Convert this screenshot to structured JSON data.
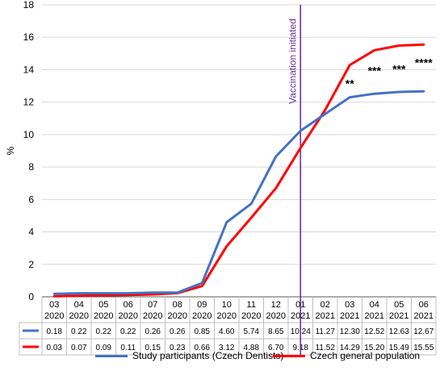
{
  "chart_data": {
    "type": "line",
    "ylabel": "%",
    "xlabel": "",
    "ylim": [
      0,
      18
    ],
    "yticks": [
      "0",
      "2",
      "4",
      "6",
      "8",
      "10",
      "12",
      "14",
      "16",
      "18"
    ],
    "grid": "horizontal",
    "categories": [
      [
        "03",
        "2020"
      ],
      [
        "04",
        "2020"
      ],
      [
        "05",
        "2020"
      ],
      [
        "06",
        "2020"
      ],
      [
        "07",
        "2020"
      ],
      [
        "08",
        "2020"
      ],
      [
        "09",
        "2020"
      ],
      [
        "10",
        "2020"
      ],
      [
        "11",
        "2020"
      ],
      [
        "12",
        "2020"
      ],
      [
        "01",
        "2021"
      ],
      [
        "02",
        "2021"
      ],
      [
        "03",
        "2021"
      ],
      [
        "04",
        "2021"
      ],
      [
        "05",
        "2021"
      ],
      [
        "06",
        "2021"
      ]
    ],
    "series": [
      {
        "name": "Study participants (Czech Dentists)",
        "color": "#4472C4",
        "values": [
          0.18,
          0.22,
          0.22,
          0.22,
          0.26,
          0.26,
          0.85,
          4.6,
          5.74,
          8.65,
          10.24,
          11.27,
          12.3,
          12.52,
          12.63,
          12.67
        ],
        "labels": [
          "0.18",
          "0.22",
          "0.22",
          "0.22",
          "0.26",
          "0.26",
          "0.85",
          "4.60",
          "5.74",
          "8.65",
          "10.24",
          "11.27",
          "12.30",
          "12.52",
          "12.63",
          "12.67"
        ]
      },
      {
        "name": "Czech general population",
        "color": "#FF0000",
        "values": [
          0.03,
          0.07,
          0.09,
          0.11,
          0.15,
          0.23,
          0.66,
          3.12,
          4.88,
          6.7,
          9.18,
          11.52,
          14.29,
          15.2,
          15.49,
          15.55
        ],
        "labels": [
          "0.03",
          "0.07",
          "0.09",
          "0.11",
          "0.15",
          "0.23",
          "0.66",
          "3.12",
          "4.88",
          "6.70",
          "9.18",
          "11.52",
          "14.29",
          "15.20",
          "15.49",
          "15.55"
        ]
      }
    ],
    "vline": {
      "label": "Vaccination initiated",
      "category_index": 10,
      "color": "#7030A0"
    },
    "annotations": [
      {
        "text": "**",
        "category_index": 12,
        "y": 13.1
      },
      {
        "text": "***",
        "category_index": 13,
        "y": 13.9
      },
      {
        "text": "***",
        "category_index": 14,
        "y": 14.0
      },
      {
        "text": "****",
        "category_index": 15,
        "y": 14.4
      }
    ],
    "legend_position": "bottom"
  }
}
